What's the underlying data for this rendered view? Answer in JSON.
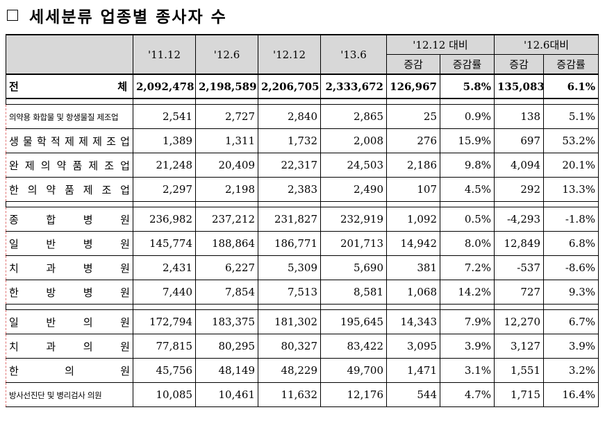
{
  "title": {
    "checkbox_symbol": "□",
    "text": "세세분류 업종별 종사자 수"
  },
  "header": {
    "periods": [
      "'11.12",
      "'12.6",
      "'12.12",
      "'13.6"
    ],
    "group1": "'12.12 대비",
    "group2": "'12.6대비",
    "sub": [
      "증감",
      "증감률",
      "증감",
      "증감률"
    ]
  },
  "total": {
    "label_left": "전",
    "label_right": "체",
    "values": [
      "2,092,478",
      "2,198,589",
      "2,206,705",
      "2,333,672",
      "126,967",
      "5.8%",
      "135,083",
      "6.1%"
    ]
  },
  "groups": [
    {
      "rows": [
        {
          "label": "의약용 화합물 및 항생물질 제조업",
          "values": [
            "2,541",
            "2,727",
            "2,840",
            "2,865",
            "25",
            "0.9%",
            "138",
            "5.1%"
          ]
        },
        {
          "label": "생물학적 제제 제조업",
          "values": [
            "1,389",
            "1,311",
            "1,732",
            "2,008",
            "276",
            "15.9%",
            "697",
            "53.2%"
          ]
        },
        {
          "label": "완제 의약품 제조업",
          "values": [
            "21,248",
            "20,409",
            "22,317",
            "24,503",
            "2,186",
            "9.8%",
            "4,094",
            "20.1%"
          ]
        },
        {
          "label": "한의약품 제조업",
          "values": [
            "2,297",
            "2,198",
            "2,383",
            "2,490",
            "107",
            "4.5%",
            "292",
            "13.3%"
          ]
        }
      ]
    },
    {
      "rows": [
        {
          "label": "종합병원",
          "values": [
            "236,982",
            "237,212",
            "231,827",
            "232,919",
            "1,092",
            "0.5%",
            "-4,293",
            "-1.8%"
          ]
        },
        {
          "label": "일반병원",
          "values": [
            "145,774",
            "188,864",
            "186,771",
            "201,713",
            "14,942",
            "8.0%",
            "12,849",
            "6.8%"
          ]
        },
        {
          "label": "치과병원",
          "values": [
            "2,431",
            "6,227",
            "5,309",
            "5,690",
            "381",
            "7.2%",
            "-537",
            "-8.6%"
          ]
        },
        {
          "label": "한방병원",
          "values": [
            "7,440",
            "7,854",
            "7,513",
            "8,581",
            "1,068",
            "14.2%",
            "727",
            "9.3%"
          ]
        }
      ]
    },
    {
      "rows": [
        {
          "label": "일반의원",
          "values": [
            "172,794",
            "183,375",
            "181,302",
            "195,645",
            "14,343",
            "7.9%",
            "12,270",
            "6.7%"
          ]
        },
        {
          "label": "치과의원",
          "values": [
            "77,815",
            "80,295",
            "80,327",
            "83,422",
            "3,095",
            "3.9%",
            "3,127",
            "3.9%"
          ]
        },
        {
          "label": "한의원",
          "values": [
            "45,756",
            "48,149",
            "48,229",
            "49,700",
            "1,471",
            "3.1%",
            "1,551",
            "3.2%"
          ]
        },
        {
          "label": "방사선진단 및 병리검사 의원",
          "values": [
            "10,085",
            "10,461",
            "11,632",
            "12,176",
            "544",
            "4.7%",
            "1,715",
            "16.4%"
          ]
        }
      ]
    }
  ]
}
